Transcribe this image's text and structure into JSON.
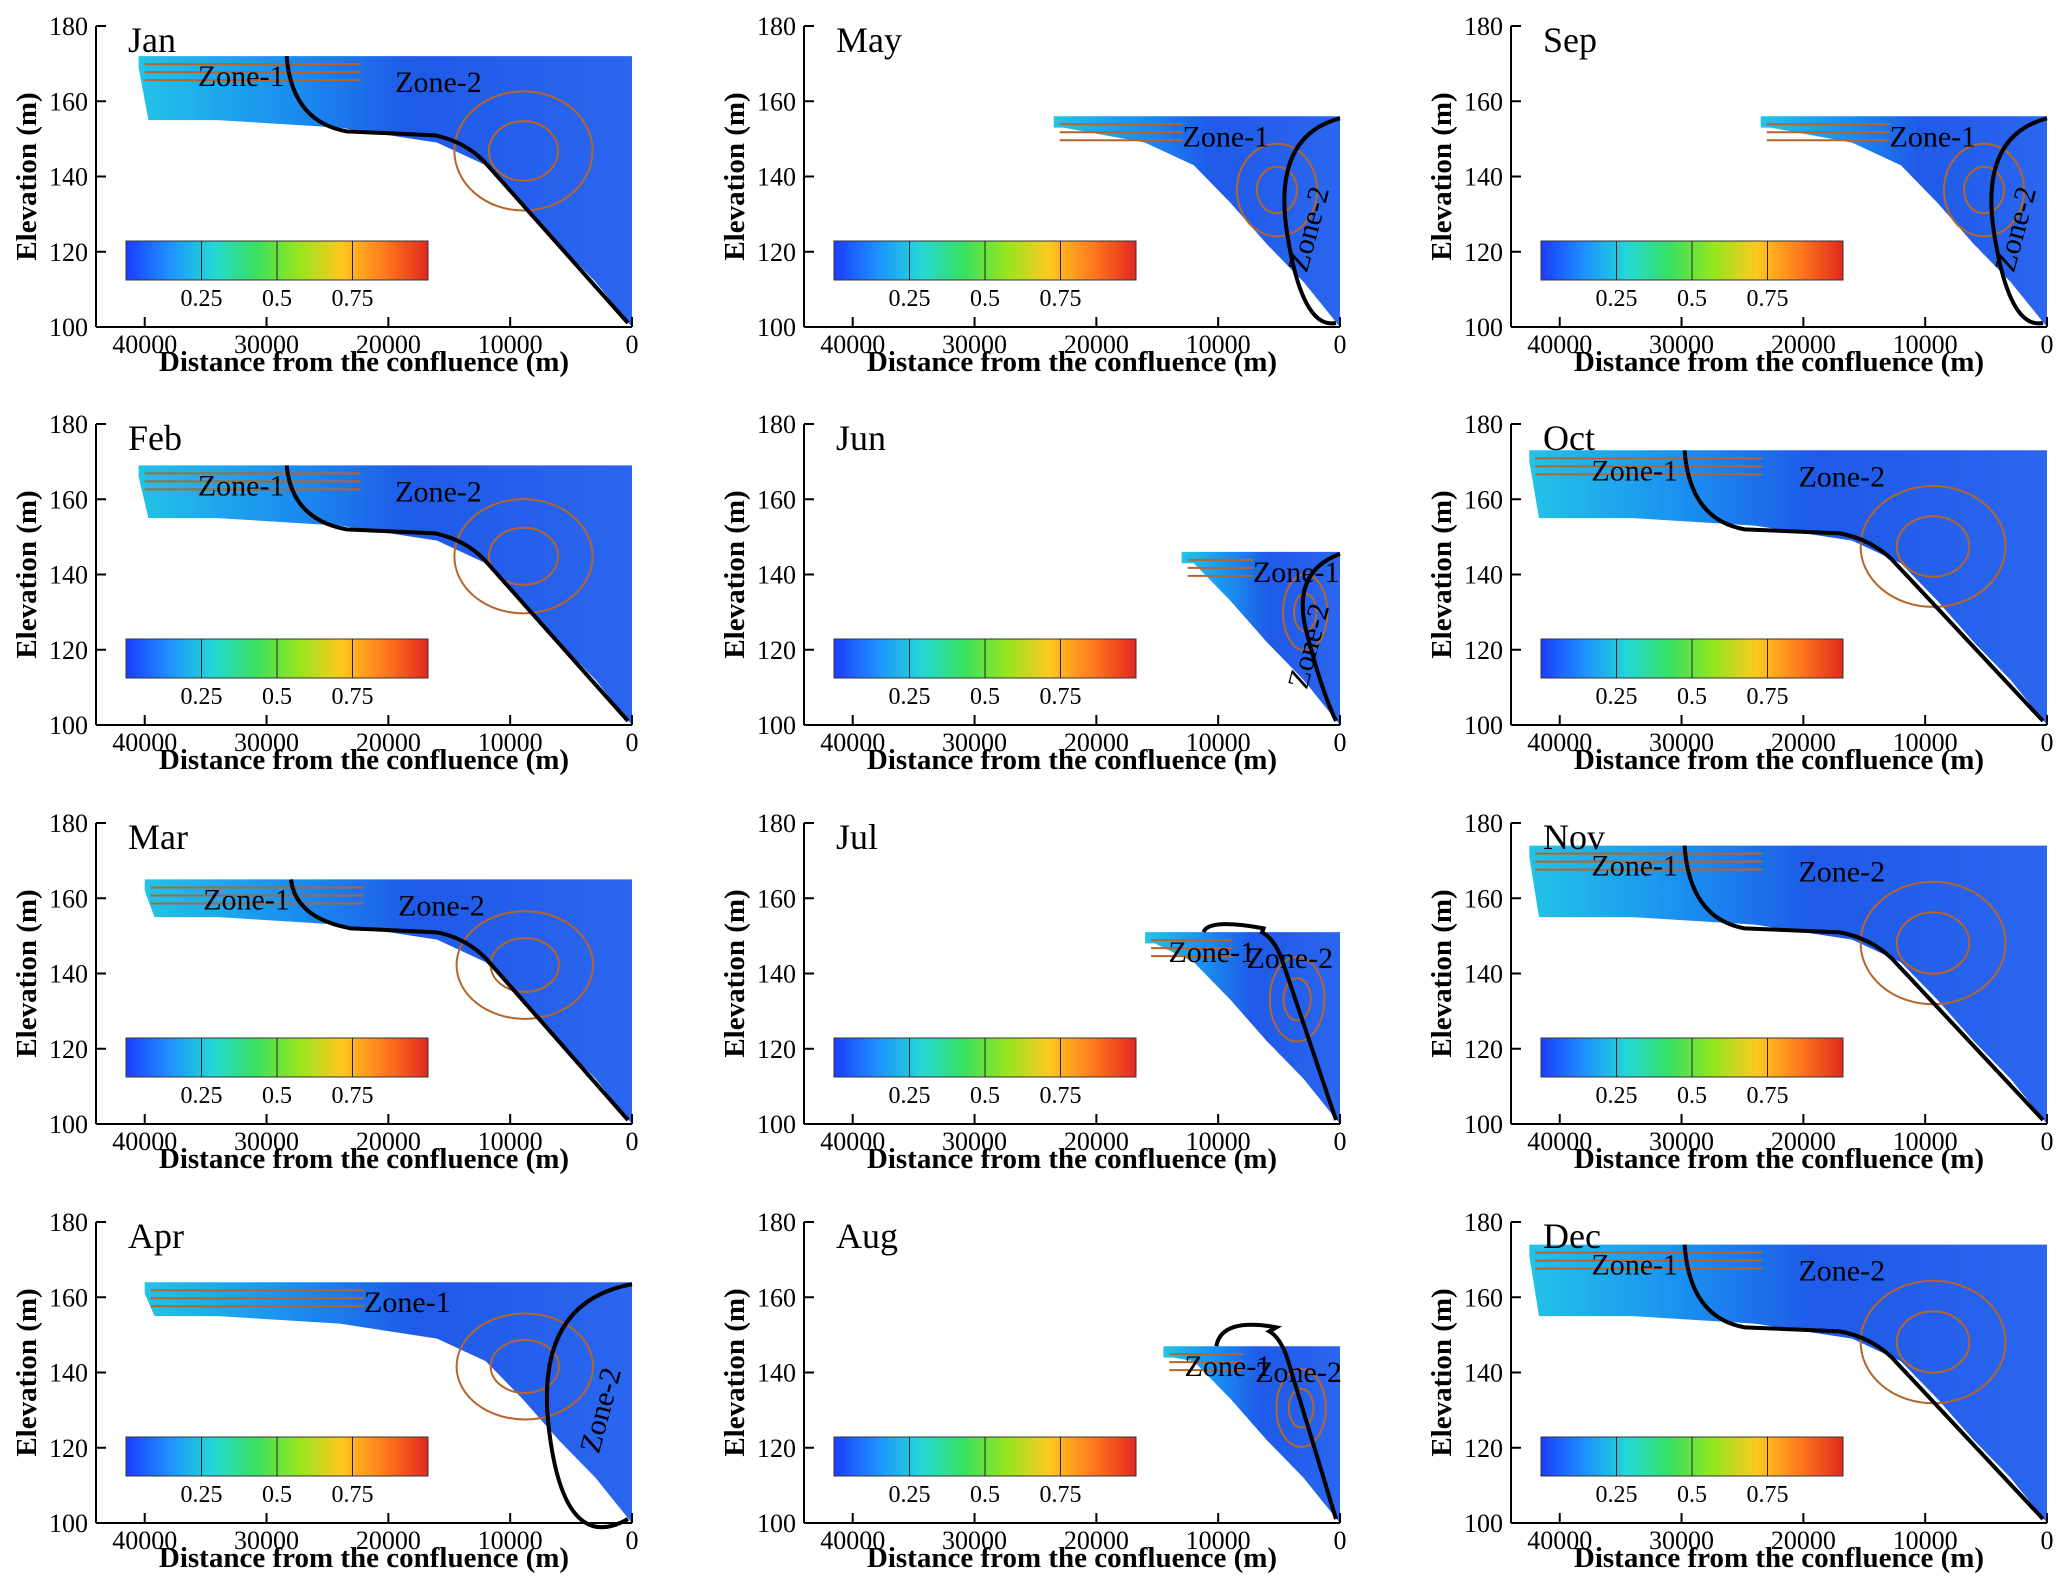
{
  "figure": {
    "cells": [
      {
        "month": "Jan",
        "wl": 172,
        "xs": 40500,
        "z1": "Zone-1",
        "z2": "Zone-2",
        "z2v": false
      },
      {
        "month": "May",
        "wl": 156,
        "xs": 23500,
        "z1": "Zone-1",
        "z2": "Zone-2",
        "z2v": true
      },
      {
        "month": "Sep",
        "wl": 156,
        "xs": 23500,
        "z1": "Zone-1",
        "z2": "Zone-2",
        "z2v": true
      },
      {
        "month": "Feb",
        "wl": 169,
        "xs": 40500,
        "z1": "Zone-1",
        "z2": "Zone-2",
        "z2v": false
      },
      {
        "month": "Jun",
        "wl": 146,
        "xs": 13000,
        "z1": "Zone-1",
        "z2": "Zone-2",
        "z2v": true
      },
      {
        "month": "Oct",
        "wl": 173,
        "xs": 42500,
        "z1": "Zone-1",
        "z2": "Zone-2",
        "z2v": false
      },
      {
        "month": "Mar",
        "wl": 165,
        "xs": 40000,
        "z1": "Zone-1",
        "z2": "Zone-2",
        "z2v": false
      },
      {
        "month": "Jul",
        "wl": 151,
        "xs": 16000,
        "z1": "Zone-1",
        "z2": "Zone-2",
        "z2v": false
      },
      {
        "month": "Nov",
        "wl": 174,
        "xs": 42500,
        "z1": "Zone-1",
        "z2": "Zone-2",
        "z2v": false
      },
      {
        "month": "Apr",
        "wl": 164,
        "xs": 40000,
        "z1": "Zone-1",
        "z2": "Zone-2",
        "z2v": true
      },
      {
        "month": "Aug",
        "wl": 147,
        "xs": 14500,
        "z1": "Zone-1",
        "z2": "Zone-2",
        "z2v": false
      },
      {
        "month": "Dec",
        "wl": 174,
        "xs": 42500,
        "z1": "Zone-1",
        "z2": "Zone-2",
        "z2v": false
      }
    ]
  },
  "chart_data": {
    "type": "heatmap",
    "xlabel": "Distance from the confluence (m)",
    "ylabel": "Elevation (m)",
    "xlim": [
      0,
      44000
    ],
    "ylim": [
      100,
      180
    ],
    "x_reversed": true,
    "x_ticks": [
      40000,
      30000,
      20000,
      10000,
      0
    ],
    "y_ticks": [
      100,
      120,
      140,
      160,
      180
    ],
    "colorbar_ticks": [
      0.25,
      0.5,
      0.75
    ],
    "colorbar_range": [
      0,
      1
    ],
    "colors": {
      "streamline": "#b5652b",
      "boundary": "#000000",
      "cmap": [
        "#1c3cff",
        "#1e90ff",
        "#22d8d8",
        "#38e060",
        "#96e61e",
        "#ffc81e",
        "#ff7a1e",
        "#e1281e"
      ]
    }
  }
}
